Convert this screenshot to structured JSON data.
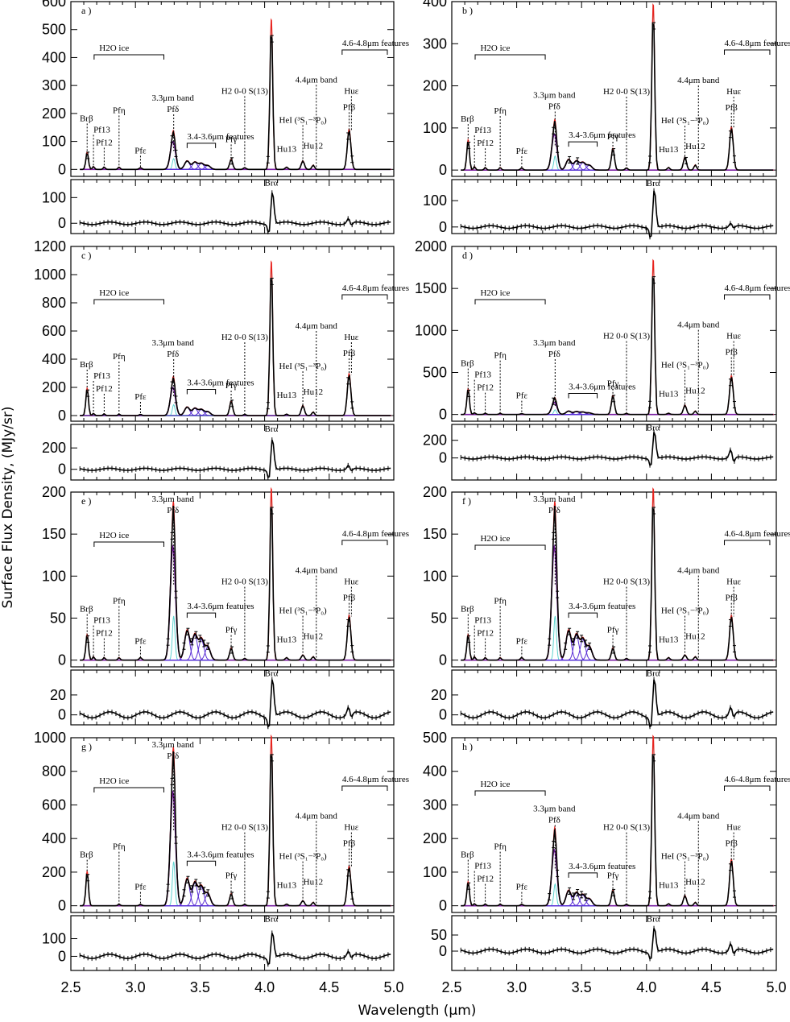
{
  "figure": {
    "xlabel": "Wavelength (μm)",
    "ylabel": "Surface Flux Density, (MJy/sr)",
    "xlim": [
      2.5,
      5.0
    ],
    "xticks": [
      "2.5",
      "3.0",
      "3.5",
      "4.0",
      "4.5",
      "5.0"
    ],
    "xtick_values": [
      2.5,
      3.0,
      3.5,
      4.0,
      4.5,
      5.0
    ]
  },
  "colors": {
    "data": "#000000",
    "total_fit": "#e8231e",
    "pah": "#7a1fa2",
    "pah_component": "#5b2fd6",
    "hydrogen_lines": "#5fd3d0",
    "continuum": "#3fb83f",
    "ice": "#1f3fd0"
  },
  "annotations_common": {
    "h2o_ice": "H2O ice",
    "band33": "3.3μm band",
    "features346": "3.4-3.6μm features",
    "features468": "4.6-4.8μm features",
    "band44": "4.4μm band",
    "h2": "H2 0-0 S(13)",
    "hei": "HeI (³S₁−³P₀)",
    "hu12": "Hu12",
    "hu13": "Hu13",
    "hue": "Huε",
    "brb": "Brβ",
    "bra": "Brα",
    "pf13": "Pf13",
    "pf12": "Pf12",
    "pfeta": "Pfη",
    "pfeps": "Pfε",
    "pfdelta": "Pfδ",
    "pfgamma": "Pfγ",
    "pfbeta": "Pfβ"
  },
  "chart_data": [
    {
      "type": "line",
      "letter": "a )",
      "ylim": [
        -25,
        600
      ],
      "yticks": [
        0,
        100,
        200,
        300,
        400,
        500,
        600
      ],
      "rlim": [
        -40,
        170
      ],
      "rticks": [
        0,
        100
      ],
      "peaks": {
        "brb": 60,
        "pf13": 10,
        "pf12": 8,
        "pfeta": 8,
        "pfeps": 6,
        "pah33": 110,
        "pahw": 30,
        "pfg": 35,
        "h2": 6,
        "bra": 525,
        "hu13": 8,
        "hei": 30,
        "hu12": 15,
        "pfb": 140
      },
      "resid": {
        "amp": 5,
        "bra": 130,
        "pfb": 20
      },
      "noPf1312": false,
      "band33High": false
    },
    {
      "type": "line",
      "letter": "b )",
      "ylim": [
        -15,
        400
      ],
      "yticks": [
        0,
        100,
        200,
        300,
        400
      ],
      "rlim": [
        -25,
        180
      ],
      "rticks": [
        0,
        100
      ],
      "peaks": {
        "brb": 70,
        "pf13": 8,
        "pf12": 6,
        "pfeta": 6,
        "pfeps": 5,
        "pah33": 95,
        "pahw": 25,
        "pfg": 50,
        "h2": 5,
        "bra": 385,
        "hu13": 6,
        "hei": 30,
        "hu12": 12,
        "pfb": 100
      },
      "resid": {
        "amp": 5,
        "bra": 150,
        "pfb": 15
      },
      "noPf1312": false,
      "band33High": false
    },
    {
      "type": "line",
      "letter": "c )",
      "ylim": [
        -40,
        1200
      ],
      "yticks": [
        0,
        200,
        400,
        600,
        800,
        1000,
        1200
      ],
      "rlim": [
        -100,
        420
      ],
      "rticks": [
        0,
        200
      ],
      "peaks": {
        "brb": 190,
        "pf13": 15,
        "pf12": 12,
        "pfeta": 10,
        "pfeps": 8,
        "pah33": 220,
        "pahw": 60,
        "pfg": 100,
        "h2": 8,
        "bra": 1070,
        "hu13": 10,
        "hei": 70,
        "hu12": 25,
        "pfb": 290
      },
      "resid": {
        "amp": 10,
        "bra": 300,
        "pfb": 40
      },
      "noPf1312": false,
      "band33High": false
    },
    {
      "type": "line",
      "letter": "d )",
      "ylim": [
        -80,
        2000
      ],
      "yticks": [
        0,
        500,
        1000,
        1500,
        2000
      ],
      "rlim": [
        -250,
        380
      ],
      "rticks": [
        0,
        200
      ],
      "peaks": {
        "brb": 300,
        "pf13": 20,
        "pf12": 15,
        "pfeta": 15,
        "pfeps": 10,
        "pah33": 160,
        "pahw": 40,
        "pfg": 220,
        "h2": 12,
        "bra": 1800,
        "hu13": 15,
        "hei": 110,
        "hu12": 40,
        "pfb": 450
      },
      "resid": {
        "amp": 12,
        "bra": 320,
        "pfb": 100
      },
      "noPf1312": false,
      "band33High": false
    },
    {
      "type": "line",
      "letter": "e )",
      "ylim": [
        -8,
        200
      ],
      "yticks": [
        0,
        50,
        100,
        150,
        200
      ],
      "rlim": [
        -10,
        45
      ],
      "rticks": [
        0,
        20
      ],
      "peaks": {
        "brb": 30,
        "pf13": 4,
        "pf12": 3,
        "pfeta": 3,
        "pfeps": 3,
        "pah33": 150,
        "pahw": 35,
        "pfg": 14,
        "h2": 2,
        "bra": 200,
        "hu13": 3,
        "hei": 6,
        "hu12": 4,
        "pfb": 52
      },
      "resid": {
        "amp": 3,
        "bra": 40,
        "pfb": 8
      },
      "noPf1312": false,
      "band33High": true
    },
    {
      "type": "line",
      "letter": "f )",
      "ylim": [
        -8,
        200
      ],
      "yticks": [
        0,
        50,
        100,
        150,
        200
      ],
      "rlim": [
        -10,
        45
      ],
      "rticks": [
        0,
        20
      ],
      "peaks": {
        "brb": 30,
        "pf13": 4,
        "pf12": 3,
        "pfeta": 3,
        "pfeps": 3,
        "pah33": 150,
        "pahw": 35,
        "pfg": 14,
        "h2": 2,
        "bra": 200,
        "hu13": 3,
        "hei": 6,
        "hu12": 4,
        "pfb": 52
      },
      "resid": {
        "amp": 3,
        "bra": 40,
        "pfb": 8
      },
      "noPf1312": false,
      "band33High": true
    },
    {
      "type": "line",
      "letter": "g )",
      "ylim": [
        -40,
        1000
      ],
      "yticks": [
        0,
        200,
        400,
        600,
        800,
        1000
      ],
      "rlim": [
        -80,
        230
      ],
      "rticks": [
        0,
        100
      ],
      "peaks": {
        "brb": 200,
        "pf13": 0,
        "pf12": 0,
        "pfeta": 10,
        "pfeps": 8,
        "pah33": 750,
        "pahw": 160,
        "pfg": 70,
        "h2": 8,
        "bra": 990,
        "hu13": 10,
        "hei": 30,
        "hu12": 20,
        "pfb": 230
      },
      "resid": {
        "amp": 12,
        "bra": 150,
        "pfb": 30
      },
      "noPf1312": true,
      "band33High": true
    },
    {
      "type": "line",
      "letter": "h )",
      "ylim": [
        -20,
        500
      ],
      "yticks": [
        0,
        100,
        200,
        300,
        400,
        500
      ],
      "rlim": [
        -60,
        110
      ],
      "rticks": [
        0,
        50
      ],
      "peaks": {
        "brb": 70,
        "pf13": 6,
        "pf12": 5,
        "pfeta": 5,
        "pfeps": 4,
        "pah33": 185,
        "pahw": 45,
        "pfg": 45,
        "h2": 4,
        "bra": 495,
        "hu13": 6,
        "hei": 30,
        "hu12": 10,
        "pfb": 135
      },
      "resid": {
        "amp": 6,
        "bra": 80,
        "pfb": 25
      },
      "noPf1312": false,
      "band33High": false
    }
  ]
}
